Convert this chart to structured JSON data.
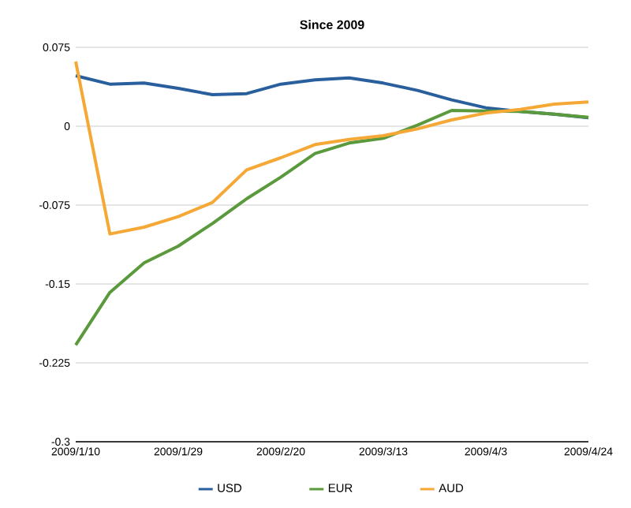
{
  "chart_data": {
    "type": "line",
    "title": "Since 2009",
    "categories": [
      "2009/1/10",
      null,
      null,
      "2009/1/29",
      null,
      null,
      "2009/2/20",
      null,
      null,
      "2009/3/13",
      null,
      null,
      "2009/4/3",
      null,
      null,
      "2009/4/24"
    ],
    "series": [
      {
        "name": "USD",
        "color": "#2a5f9e",
        "values": [
          0.048,
          0.04,
          0.041,
          0.036,
          0.03,
          0.031,
          0.04,
          0.044,
          0.046,
          0.041,
          0.034,
          0.025,
          0.0175,
          0.014,
          0.0115,
          0.008
        ]
      },
      {
        "name": "EUR",
        "color": "#5b9a3c",
        "values": [
          -0.208,
          -0.158,
          -0.13,
          -0.114,
          -0.0925,
          -0.069,
          -0.0485,
          -0.026,
          -0.016,
          -0.0115,
          0.001,
          0.015,
          0.0145,
          0.014,
          0.0115,
          0.0085
        ]
      },
      {
        "name": "AUD",
        "color": "#f5a836",
        "values": [
          0.0615,
          -0.1025,
          -0.096,
          -0.086,
          -0.0725,
          -0.0415,
          -0.03,
          -0.0175,
          -0.0125,
          -0.009,
          -0.0025,
          0.006,
          0.0125,
          0.016,
          0.021,
          0.023
        ]
      }
    ],
    "ylim": [
      -0.3,
      0.075
    ],
    "yticks": [
      0.075,
      0,
      -0.075,
      -0.15,
      -0.225,
      -0.3
    ],
    "grid": "y",
    "legend": "bottom"
  }
}
